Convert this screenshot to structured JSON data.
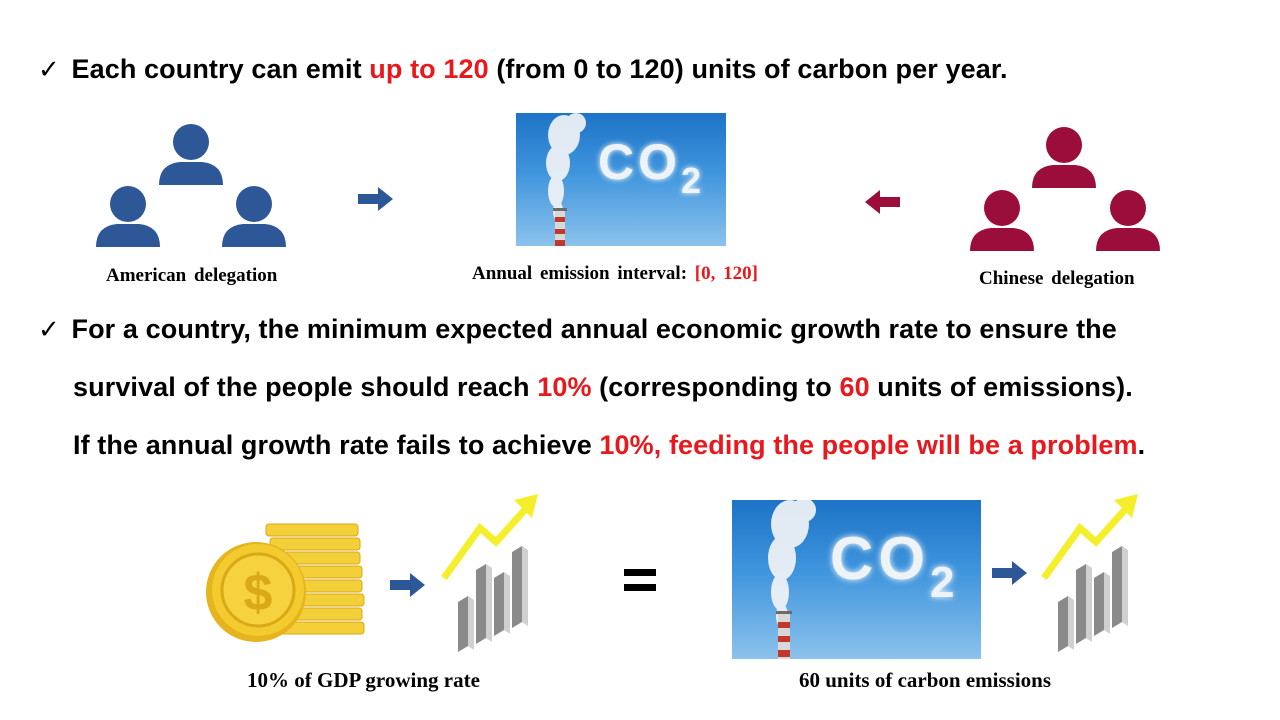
{
  "point1": {
    "check": "✓",
    "pre": "Each country can emit ",
    "red": "up to 120",
    "post": " (from 0 to 120) units of carbon per year."
  },
  "captions": {
    "american": "American delegation",
    "interval_label": "Annual emission interval:",
    "interval_value": "[0, 120]",
    "chinese": "Chinese delegation",
    "gdp": "10% of GDP growing rate",
    "emissions": "60 units of carbon emissions"
  },
  "point2": {
    "check": "✓",
    "line1": "For a country, the minimum expected annual economic growth rate to ensure the",
    "line2_pre": "survival of the people should reach ",
    "line2_red1": "10%",
    "line2_mid": " (corresponding to ",
    "line2_red2": "60",
    "line2_post": " units of emissions).",
    "line3_pre": "If the annual growth rate fails to achieve ",
    "line3_red": "10%, feeding the people will be a problem",
    "line3_post": "."
  },
  "images": {
    "co2_text": "CO",
    "co2_sub": "2",
    "dollar": "$"
  },
  "colors": {
    "accent_red": "#e8191d",
    "us_blue": "#2e5797",
    "cn_red": "#9b0d3b",
    "arrow_blue": "#2e5797",
    "coin_gold": "#f2c82e",
    "trend_yellow": "#f5ee2a"
  }
}
